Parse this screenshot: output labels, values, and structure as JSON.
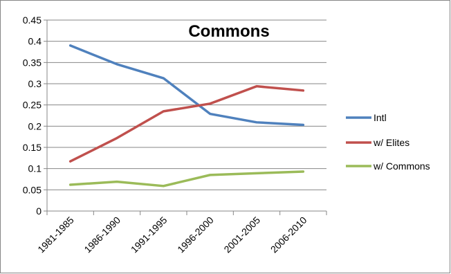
{
  "chart_data": {
    "type": "line",
    "title": "Commons",
    "categories": [
      "1981-1985",
      "1986-1990",
      "1991-1995",
      "1996-2000",
      "2001-2005",
      "2006-2010"
    ],
    "ylim": [
      0,
      0.45
    ],
    "yticks": [
      "0",
      "0.05",
      "0.1",
      "0.15",
      "0.2",
      "0.25",
      "0.3",
      "0.35",
      "0.4",
      "0.45"
    ],
    "grid": true,
    "legend_position": "right",
    "series": [
      {
        "name": "Intl",
        "color": "#4f81bd",
        "values": [
          0.39,
          0.346,
          0.313,
          0.229,
          0.209,
          0.203
        ]
      },
      {
        "name": "w/ Elites",
        "color": "#c0504d",
        "values": [
          0.117,
          0.172,
          0.235,
          0.253,
          0.294,
          0.284
        ]
      },
      {
        "name": "w/ Commons",
        "color": "#9bbb59",
        "values": [
          0.062,
          0.069,
          0.059,
          0.085,
          0.089,
          0.093
        ]
      }
    ]
  }
}
